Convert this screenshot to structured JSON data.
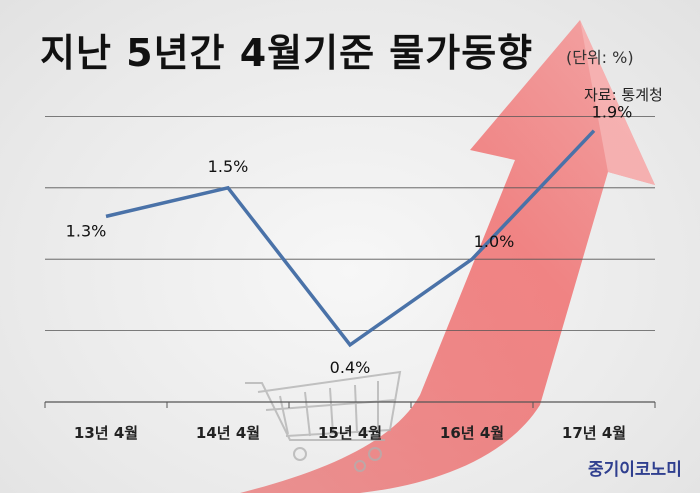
{
  "header": {
    "title": "지난 5년간 4월기준 물가동향",
    "unit": "(단위: %)",
    "source": "자료: 통계청"
  },
  "footer": {
    "brand": "중기이코노미"
  },
  "colors": {
    "line": "#4a72a8",
    "arrow": "#f08080",
    "grid": "#555555"
  },
  "chart_data": {
    "type": "line",
    "title": "지난 5년간 4월기준 물가동향",
    "categories": [
      "13년 4월",
      "14년 4월",
      "15년 4월",
      "16년 4월",
      "17년 4월"
    ],
    "series": [
      {
        "values": [
          1.3,
          1.5,
          0.4,
          1.0,
          1.9
        ],
        "labels": [
          "1.3%",
          "1.5%",
          "0.4%",
          "1.0%",
          "1.9%"
        ]
      }
    ],
    "ylim": [
      0,
      2.5
    ],
    "grid": true,
    "legend": "none"
  }
}
